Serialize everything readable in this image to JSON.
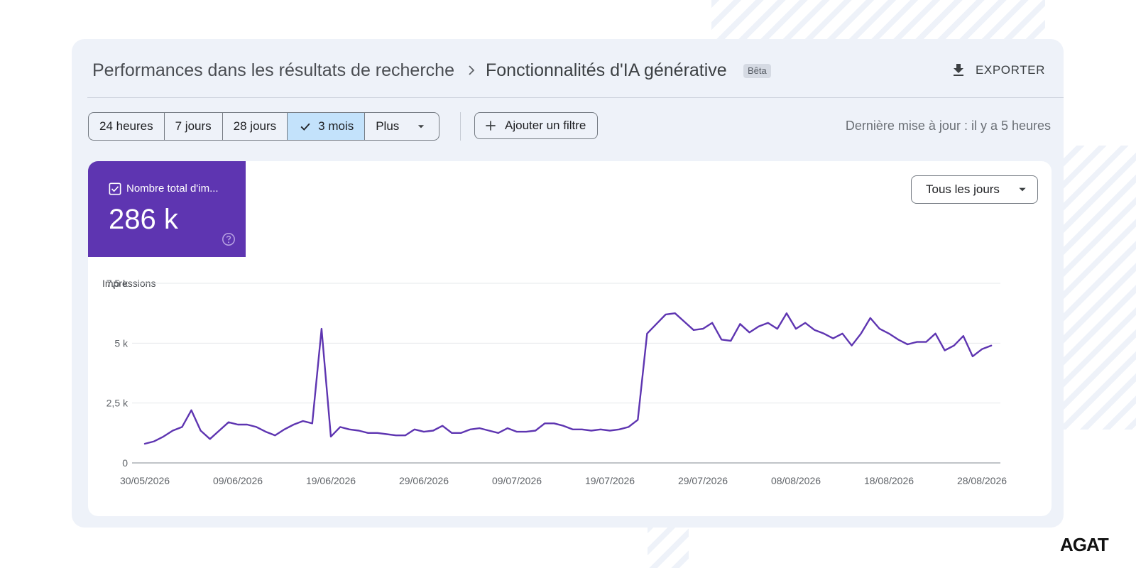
{
  "breadcrumb": {
    "parent": "Performances dans les résultats de recherche",
    "current": "Fonctionnalités d'IA générative",
    "badge": "Bêta"
  },
  "toolbar": {
    "export_label": "EXPORTER"
  },
  "date_range": {
    "options": [
      {
        "label": "24 heures",
        "selected": false
      },
      {
        "label": "7 jours",
        "selected": false
      },
      {
        "label": "28 jours",
        "selected": false
      },
      {
        "label": "3 mois",
        "selected": true
      },
      {
        "label": "Plus",
        "selected": false
      }
    ]
  },
  "filter": {
    "add_label": "Ajouter un filtre"
  },
  "last_update": "Dernière mise à jour : il y a 5 heures",
  "metric": {
    "label": "Nombre total d'im...",
    "value": "286 k",
    "checked": true,
    "color": "#5e35b1"
  },
  "granularity": {
    "selected": "Tous les jours"
  },
  "brand": {
    "logo_text": "AGAT"
  },
  "chart_data": {
    "type": "line",
    "ylabel": "Impressions",
    "ylim": [
      0,
      7500
    ],
    "yticks": [
      {
        "value": 0,
        "label": "0"
      },
      {
        "value": 2500,
        "label": "2,5 k"
      },
      {
        "value": 5000,
        "label": "5 k"
      },
      {
        "value": 7500,
        "label": "7,5 k"
      }
    ],
    "x_start": "30/05/2026",
    "xticks": [
      "30/05/2026",
      "09/06/2026",
      "19/06/2026",
      "29/06/2026",
      "09/07/2026",
      "19/07/2026",
      "29/07/2026",
      "08/08/2026",
      "18/08/2026",
      "28/08/2026"
    ],
    "grid": true,
    "color": "#5e35b1",
    "series": [
      {
        "values": [
          800,
          900,
          1100,
          1350,
          1500,
          2200,
          1350,
          1000,
          1350,
          1700,
          1600,
          1600,
          1500,
          1300,
          1150,
          1400,
          1600,
          1750,
          1650,
          5600,
          1100,
          1500,
          1400,
          1350,
          1250,
          1250,
          1200,
          1150,
          1150,
          1400,
          1300,
          1350,
          1550,
          1250,
          1250,
          1400,
          1450,
          1350,
          1250,
          1450,
          1300,
          1300,
          1350,
          1650,
          1650,
          1550,
          1400,
          1400,
          1350,
          1400,
          1350,
          1400,
          1500,
          1800,
          5400,
          5800,
          6200,
          6250,
          5900,
          5550,
          5600,
          5850,
          5150,
          5100,
          5800,
          5450,
          5700,
          5850,
          5600,
          6250,
          5600,
          5850,
          5550,
          5400,
          5200,
          5400,
          4900,
          5400,
          6050,
          5600,
          5400,
          5150,
          4950,
          5050,
          5050,
          5400,
          4700,
          4900,
          5300,
          4450,
          4750,
          4900
        ]
      }
    ]
  }
}
